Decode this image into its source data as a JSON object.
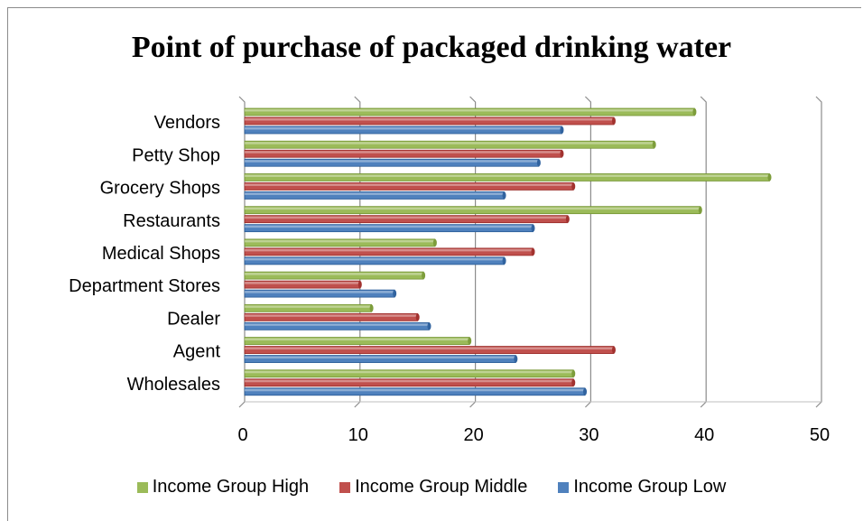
{
  "header_fragment": "      ",
  "chart_data": {
    "type": "bar",
    "orientation": "horizontal",
    "title": "Point of purchase of packaged drinking water",
    "xlim": [
      0,
      50
    ],
    "xticks": [
      "0",
      "10",
      "20",
      "30",
      "40",
      "50"
    ],
    "grid": true,
    "legend_position": "bottom",
    "categories": [
      "Vendors",
      "Petty Shop",
      "Grocery Shops",
      "Restaurants",
      "Medical Shops",
      "Department Stores",
      "Dealer",
      "Agent",
      "Wholesales"
    ],
    "series": [
      {
        "name": "Income Group High",
        "color": "#9bbb59",
        "values": [
          39,
          35.5,
          45.5,
          39.5,
          16.5,
          15.5,
          11,
          19.5,
          28.5
        ]
      },
      {
        "name": "Income Group Middle",
        "color": "#c0504d",
        "values": [
          32,
          27.5,
          28.5,
          28,
          25,
          10,
          15,
          32,
          28.5
        ]
      },
      {
        "name": "Income Group Low",
        "color": "#4f81bd",
        "values": [
          27.5,
          25.5,
          22.5,
          25,
          22.5,
          13,
          16,
          23.5,
          29.5
        ]
      }
    ]
  }
}
